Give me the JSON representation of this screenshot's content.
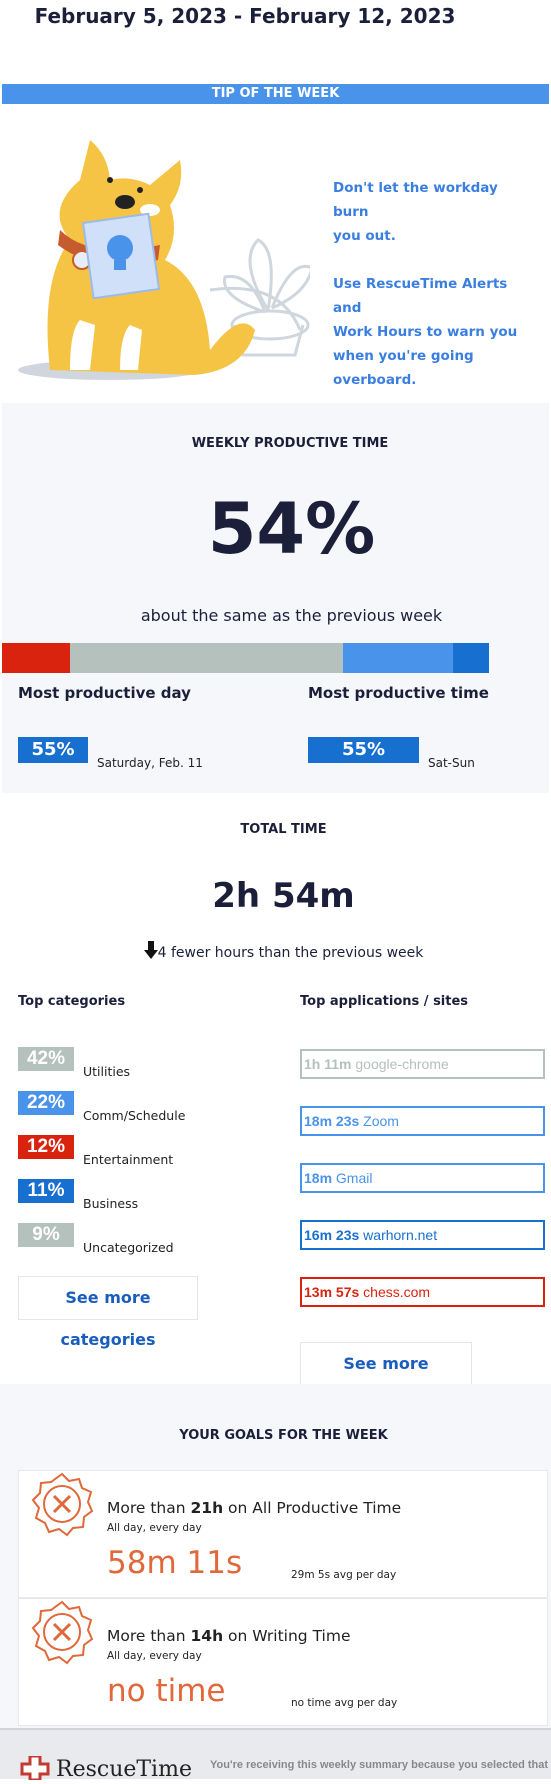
{
  "header": {
    "date_range": "February 5, 2023 - February 12, 2023"
  },
  "tip": {
    "banner": "TIP OF THE WEEK",
    "lines": [
      "Don't let the workday burn",
      "you out.",
      "",
      "Use RescueTime Alerts and",
      "Work Hours to warn you",
      "when you're going",
      "overboard."
    ]
  },
  "productive": {
    "title": "WEEKLY PRODUCTIVE TIME",
    "percent": "54%",
    "comparison": "about the same as the previous week",
    "bar_segments": [
      {
        "fraction": 0.124,
        "color": "#d9230f"
      },
      {
        "fraction": 0.5,
        "color": "#b4c1bd"
      },
      {
        "fraction": 0.2,
        "color": "#4a93ea"
      },
      {
        "fraction": 0.066,
        "color": "#1770d0"
      }
    ],
    "most_day": {
      "label": "Most productive day",
      "percent": "55%",
      "detail": "Saturday, Feb. 11"
    },
    "most_time": {
      "label": "Most productive time",
      "percent": "55%",
      "detail": "Sat-Sun"
    }
  },
  "total": {
    "title": "TOTAL TIME",
    "value": "2h 54m",
    "comparison": "4 fewer hours than the previous week"
  },
  "categories": {
    "title": "Top categories",
    "items": [
      {
        "percent": "42%",
        "name": "Utilities",
        "color": "#b4c1bd"
      },
      {
        "percent": "22%",
        "name": "Comm/Schedule",
        "color": "#4a93ea"
      },
      {
        "percent": "12%",
        "name": "Entertainment",
        "color": "#d9230f"
      },
      {
        "percent": "11%",
        "name": "Business",
        "color": "#1770d0"
      },
      {
        "percent": "9%",
        "name": "Uncategorized",
        "color": "#b4c1bd"
      }
    ],
    "more": "See more categories"
  },
  "apps": {
    "title": "Top applications / sites",
    "items": [
      {
        "time": "1h 11m",
        "name": "google-chrome",
        "color": "#b4c1bd"
      },
      {
        "time": "18m 23s",
        "name": "Zoom",
        "color": "#4a93ea"
      },
      {
        "time": "18m",
        "name": "Gmail",
        "color": "#4a93ea"
      },
      {
        "time": "16m 23s",
        "name": "warhorn.net",
        "color": "#1770d0"
      },
      {
        "time": "13m 57s",
        "name": "chess.com",
        "color": "#d9230f"
      }
    ],
    "more": "See more activities"
  },
  "goals": {
    "title": "YOUR GOALS FOR THE WEEK",
    "items": [
      {
        "pre": "More than ",
        "amount": "21h",
        "post": " on All Productive Time",
        "schedule": "All day, every day",
        "value": "58m 11s",
        "avg": "29m 5s avg per day"
      },
      {
        "pre": "More than ",
        "amount": "14h",
        "post": " on Writing Time",
        "schedule": "All day, every day",
        "value": "no time",
        "avg": "no time avg per day"
      }
    ]
  },
  "footer": {
    "logo": "RescueTime",
    "notice": "You're receiving this weekly summary because you selected that"
  },
  "colors": {
    "accent": "#4a93ea",
    "dark": "#1c1f3a",
    "goal_fail": "#e0683a"
  }
}
